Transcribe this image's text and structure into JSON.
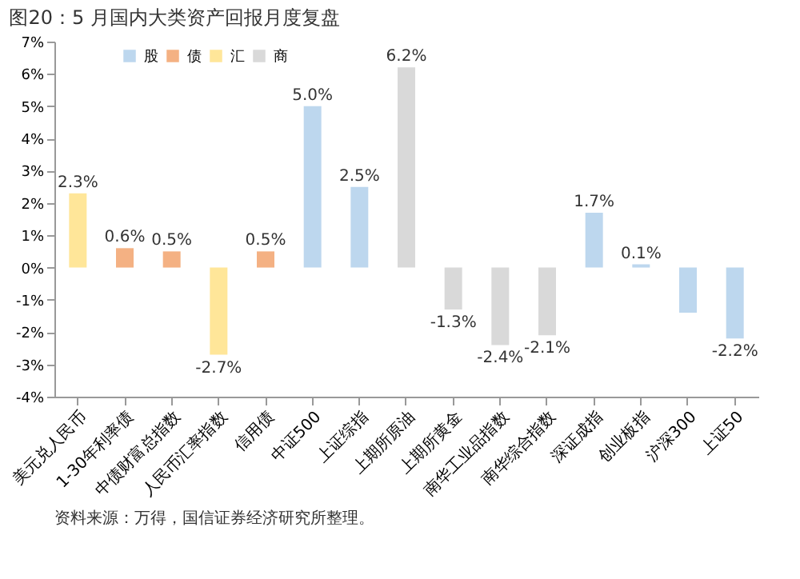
{
  "chart_data": {
    "type": "bar",
    "title": "图20：5 月国内大类资产回报月度复盘",
    "categories": [
      "美元兑人民币",
      "1-30年利率债",
      "中债财富总指数",
      "人民币汇率指数",
      "信用债",
      "中证500",
      "上证综指",
      "上期所原油",
      "上期所黄金",
      "南华工业品指数",
      "南华综合指数",
      "深证成指",
      "创业板指",
      "沪深300",
      "上证50"
    ],
    "series": [
      {
        "name": "股",
        "color": "#bdd7ee",
        "values": [
          null,
          null,
          null,
          null,
          null,
          5.0,
          2.5,
          null,
          null,
          null,
          null,
          1.7,
          0.1,
          -1.4,
          -2.2
        ],
        "value_labels": [
          null,
          null,
          null,
          null,
          null,
          "5.0%",
          "2.5%",
          null,
          null,
          null,
          null,
          "1.7%",
          "0.1%",
          null,
          "-2.2%"
        ]
      },
      {
        "name": "债",
        "color": "#f4b183",
        "values": [
          null,
          0.6,
          0.5,
          null,
          0.5,
          null,
          null,
          null,
          null,
          null,
          null,
          null,
          null,
          null,
          null
        ],
        "value_labels": [
          null,
          "0.6%",
          "0.5%",
          null,
          "0.5%",
          null,
          null,
          null,
          null,
          null,
          null,
          null,
          null,
          null,
          null
        ]
      },
      {
        "name": "汇",
        "color": "#ffe699",
        "values": [
          2.3,
          null,
          null,
          -2.7,
          null,
          null,
          null,
          null,
          null,
          null,
          null,
          null,
          null,
          null,
          null
        ],
        "value_labels": [
          "2.3%",
          null,
          null,
          "-2.7%",
          null,
          null,
          null,
          null,
          null,
          null,
          null,
          null,
          null,
          null,
          null
        ]
      },
      {
        "name": "商",
        "color": "#d9d9d9",
        "values": [
          null,
          null,
          null,
          null,
          null,
          null,
          null,
          6.2,
          -1.3,
          -2.4,
          -2.1,
          null,
          null,
          null,
          null
        ],
        "value_labels": [
          null,
          null,
          null,
          null,
          null,
          null,
          null,
          "6.2%",
          "-1.3%",
          "-2.4%",
          "-2.1%",
          null,
          null,
          null,
          null
        ]
      }
    ],
    "ylim": [
      -4,
      7
    ],
    "yticks": [
      {
        "value": -4,
        "label": "-4%"
      },
      {
        "value": -3,
        "label": "-3%"
      },
      {
        "value": -2,
        "label": "-2%"
      },
      {
        "value": -1,
        "label": "-1%"
      },
      {
        "value": 0,
        "label": "0%"
      },
      {
        "value": 1,
        "label": "1%"
      },
      {
        "value": 2,
        "label": "2%"
      },
      {
        "value": 3,
        "label": "3%"
      },
      {
        "value": 4,
        "label": "4%"
      },
      {
        "value": 5,
        "label": "5%"
      },
      {
        "value": 6,
        "label": "6%"
      },
      {
        "value": 7,
        "label": "7%"
      }
    ],
    "grid": false,
    "legend": "top left",
    "annotations": [
      "资料来源：万得，国信证券经济研究所整理。"
    ]
  }
}
